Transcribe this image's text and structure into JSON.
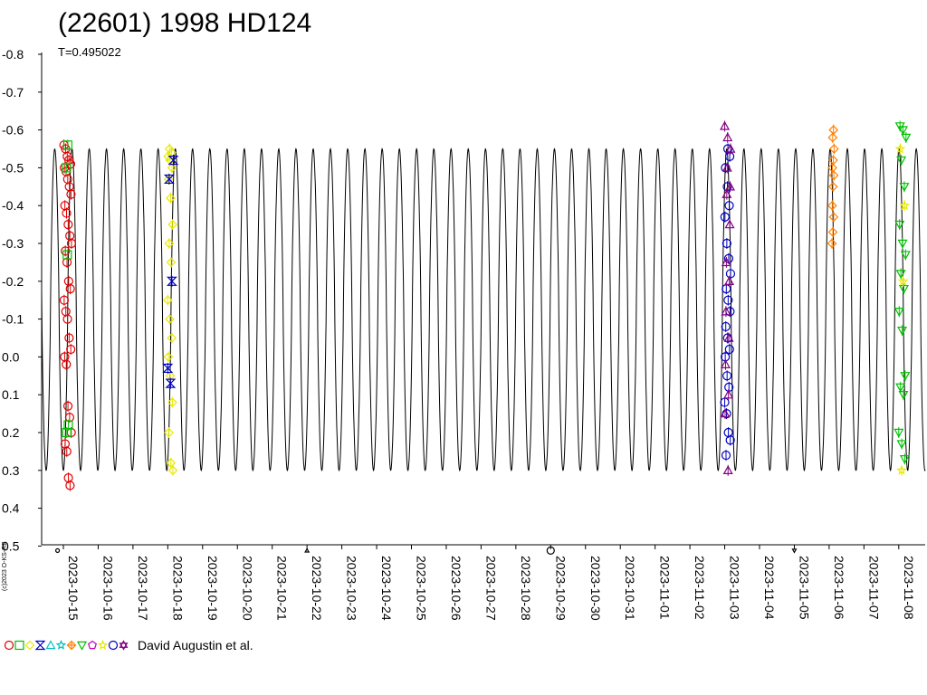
{
  "chart_data": {
    "type": "scatter",
    "title": "(22601) 1998 HD124",
    "subtitle": "T=0.495022",
    "copyright": "(c)2023 O-KS-RB",
    "legend_label": "David Augustin et al.",
    "y_axis": {
      "inverted": true,
      "range": [
        -0.8,
        0.5
      ],
      "ticks": [
        "-0.8",
        "-0.7",
        "-0.6",
        "-0.5",
        "-0.4",
        "-0.3",
        "-0.2",
        "-0.1",
        "0.0",
        "0.1",
        "0.2",
        "0.3",
        "0.4",
        "0.5"
      ]
    },
    "x_axis": {
      "type": "date",
      "range": [
        "2023-10-14T15:00",
        "2023-11-09T00:00"
      ],
      "ticks": [
        "2023-10-15",
        "2023-10-16",
        "2023-10-17",
        "2023-10-18",
        "2023-10-19",
        "2023-10-20",
        "2023-10-21",
        "2023-10-22",
        "2023-10-23",
        "2023-10-24",
        "2023-10-25",
        "2023-10-26",
        "2023-10-27",
        "2023-10-28",
        "2023-10-29",
        "2023-10-30",
        "2023-10-31",
        "2023-11-01",
        "2023-11-02",
        "2023-11-03",
        "2023-11-04",
        "2023-11-05",
        "2023-11-06",
        "2023-11-07",
        "2023-11-08"
      ]
    },
    "model_curve": {
      "period_days": 0.495022,
      "max_mag": -0.55,
      "min_mag": 0.3,
      "color": "#000000"
    },
    "series": [
      {
        "marker": "circle",
        "color": "#e00000",
        "date": "2023-10-15",
        "hours": [
          0.4,
          5.6
        ],
        "mags": [
          -0.56,
          -0.55,
          -0.53,
          -0.52,
          -0.51,
          -0.5,
          -0.49,
          -0.47,
          -0.45,
          -0.43,
          -0.4,
          -0.38,
          -0.35,
          -0.32,
          -0.3,
          -0.28,
          -0.25,
          -0.2,
          -0.18,
          -0.15,
          -0.12,
          -0.1,
          -0.05,
          -0.02,
          0.0,
          0.02,
          0.13,
          0.16,
          0.2,
          0.23,
          0.25,
          0.32,
          0.34
        ]
      },
      {
        "marker": "square",
        "color": "#00c000",
        "date": "2023-10-15",
        "hours": [
          2.0,
          3.4
        ],
        "mags": [
          -0.56,
          -0.5,
          -0.27,
          0.18,
          0.2
        ]
      },
      {
        "marker": "diamond",
        "color": "#e8e800",
        "date": "2023-10-18",
        "hours": [
          0.0,
          3.5
        ],
        "mags": [
          -0.55,
          -0.54,
          -0.53,
          -0.52,
          -0.5,
          -0.47,
          -0.42,
          -0.35,
          -0.3,
          -0.25,
          -0.15,
          -0.1,
          -0.05,
          0.0,
          0.05,
          0.12,
          0.2,
          0.28,
          0.3
        ]
      },
      {
        "marker": "hourglass",
        "color": "#0000c0",
        "date": "2023-10-18",
        "hours": [
          0.0,
          3.8
        ],
        "mags": [
          -0.52,
          -0.47,
          -0.2,
          0.03,
          0.07
        ]
      },
      {
        "marker": "circle",
        "color": "#0000c0",
        "date": "2023-11-03",
        "hours": [
          0.0,
          4.0
        ],
        "mags": [
          -0.55,
          -0.53,
          -0.5,
          -0.45,
          -0.4,
          -0.37,
          -0.3,
          -0.26,
          -0.22,
          -0.18,
          -0.15,
          -0.12,
          -0.08,
          -0.05,
          -0.02,
          0.0,
          0.05,
          0.08,
          0.12,
          0.15,
          0.2,
          0.22,
          0.26
        ]
      },
      {
        "marker": "triangle",
        "color": "#800080",
        "date": "2023-11-03",
        "hours": [
          0.0,
          4.0
        ],
        "mags": [
          -0.61,
          -0.58,
          -0.55,
          -0.5,
          -0.45,
          -0.43,
          -0.35,
          -0.25,
          -0.2,
          -0.12,
          -0.05,
          0.02,
          0.1,
          0.15,
          0.3
        ]
      },
      {
        "marker": "diamond",
        "color": "#ff8000",
        "date": "2023-11-06",
        "hours": [
          2.0,
          3.4
        ],
        "mags": [
          -0.6,
          -0.58,
          -0.55,
          -0.52,
          -0.5,
          -0.48,
          -0.45,
          -0.4,
          -0.37,
          -0.33,
          -0.3
        ]
      },
      {
        "marker": "triangle-down",
        "color": "#00c000",
        "date": "2023-11-08",
        "hours": [
          0.0,
          5.0
        ],
        "mags": [
          -0.61,
          -0.6,
          -0.58,
          -0.52,
          -0.45,
          -0.35,
          -0.3,
          -0.27,
          -0.22,
          -0.18,
          -0.12,
          -0.07,
          0.05,
          0.08,
          0.1,
          0.2,
          0.23,
          0.27
        ]
      },
      {
        "marker": "star",
        "color": "#e8e800",
        "date": "2023-11-08",
        "hours": [
          1.0,
          4.0
        ],
        "mags": [
          -0.55,
          -0.4,
          -0.2,
          0.3
        ]
      }
    ],
    "stray_markers": [
      {
        "marker": "circle",
        "color": "#000000",
        "date": "2023-10-14T20:00",
        "mag": 0.5,
        "size": 2
      },
      {
        "marker": "triangle",
        "color": "#000000",
        "date": "2023-10-22T00:00",
        "mag": 0.5,
        "size": 2
      },
      {
        "marker": "circle",
        "color": "#000000",
        "date": "2023-10-29T00:00",
        "mag": 0.5,
        "size": 4
      },
      {
        "marker": "triangle-down",
        "color": "#000000",
        "date": "2023-11-05T00:00",
        "mag": 0.5,
        "size": 2
      }
    ],
    "legend_markers": [
      {
        "marker": "circle",
        "color": "#e00000"
      },
      {
        "marker": "square",
        "color": "#00c000"
      },
      {
        "marker": "diamond",
        "color": "#e8e800"
      },
      {
        "marker": "hourglass",
        "color": "#0000c0"
      },
      {
        "marker": "triangle",
        "color": "#00c0c0"
      },
      {
        "marker": "star",
        "color": "#00c0c0"
      },
      {
        "marker": "diamond-cross",
        "color": "#ff8000"
      },
      {
        "marker": "triangle-down",
        "color": "#00c000"
      },
      {
        "marker": "pentagon",
        "color": "#c000c0"
      },
      {
        "marker": "star",
        "color": "#e8e800"
      },
      {
        "marker": "circle",
        "color": "#0000c0"
      },
      {
        "marker": "star-of-david",
        "color": "#800080"
      }
    ]
  }
}
